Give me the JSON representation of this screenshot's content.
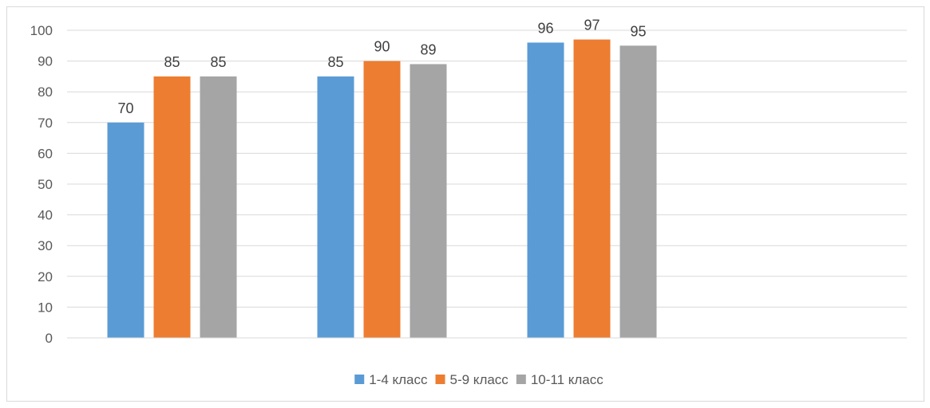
{
  "chart_data": {
    "type": "bar",
    "categories": [
      "",
      "",
      "",
      ""
    ],
    "series": [
      {
        "name": "1-4 класс",
        "color": "#5b9bd5",
        "values": [
          70,
          85,
          96,
          null
        ]
      },
      {
        "name": "5-9 класс",
        "color": "#ed7d31",
        "values": [
          85,
          90,
          97,
          null
        ]
      },
      {
        "name": "10-11 класс",
        "color": "#a5a5a5",
        "values": [
          85,
          89,
          95,
          null
        ]
      }
    ],
    "title": "",
    "xlabel": "",
    "ylabel": "",
    "ylim": [
      0,
      100
    ],
    "yticks": [
      0,
      10,
      20,
      30,
      40,
      50,
      60,
      70,
      80,
      90,
      100
    ],
    "grid": true,
    "legend_position": "bottom",
    "data_labels": true
  }
}
